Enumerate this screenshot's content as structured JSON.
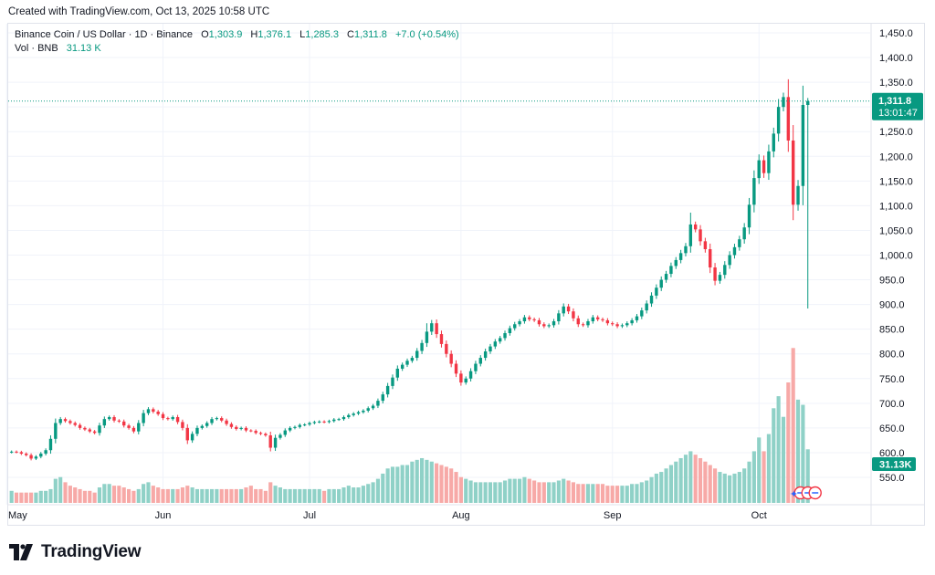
{
  "header": {
    "created_text": "Created with TradingView.com, Oct 13, 2025 10:58 UTC"
  },
  "legend": {
    "symbol": "Binance Coin / US Dollar · 1D · Binance",
    "open_label": "O",
    "open": "1,303.9",
    "high_label": "H",
    "high": "1,376.1",
    "low_label": "L",
    "low": "1,285.3",
    "close_label": "C",
    "close": "1,311.8",
    "change": "+7.0 (+0.54%)",
    "volume_label": "Vol · BNB",
    "volume": "31.13 K"
  },
  "price_marker": {
    "price": "1,311.8",
    "countdown": "13:01:47"
  },
  "volume_marker": {
    "value": "31.13K"
  },
  "footer": {
    "brand": "TradingView"
  },
  "colors": {
    "up": "#089981",
    "down": "#f23645",
    "up_vol": "#8fd1c7",
    "down_vol": "#f7a9a7"
  },
  "chart_data": {
    "type": "candlestick",
    "title": "Binance Coin / US Dollar · 1D · Binance",
    "ylim": [
      500,
      1475
    ],
    "y_ticks": [
      550,
      600,
      650,
      700,
      750,
      800,
      850,
      900,
      950,
      1000,
      1050,
      1100,
      1150,
      1200,
      1250,
      1300,
      1350,
      1400,
      1450
    ],
    "y_tick_labels": [
      "550.0",
      "600.0",
      "650.0",
      "700.0",
      "750.0",
      "800.0",
      "850.0",
      "900.0",
      "950.0",
      "1,000.0",
      "1,050.0",
      "1,100.0",
      "1,150.0",
      "1,200.0",
      "1,250.0",
      "1,300.0",
      "1,350.0",
      "1,400.0",
      "1,450.0"
    ],
    "x_labels": [
      {
        "label": "May",
        "index": -1
      },
      {
        "label": "Jun",
        "index": 31
      },
      {
        "label": "Jul",
        "index": 61
      },
      {
        "label": "Aug",
        "index": 92
      },
      {
        "label": "Sep",
        "index": 123
      },
      {
        "label": "Oct",
        "index": 153
      }
    ],
    "last_price": 1311.8,
    "volume_unit": "K BNB",
    "closes": [
      602,
      601,
      598,
      595,
      588,
      592,
      598,
      605,
      628,
      660,
      668,
      664,
      660,
      656,
      650,
      647,
      643,
      640,
      655,
      668,
      672,
      665,
      663,
      655,
      650,
      643,
      660,
      680,
      688,
      683,
      678,
      670,
      668,
      672,
      662,
      650,
      625,
      638,
      650,
      654,
      660,
      668,
      670,
      665,
      658,
      652,
      648,
      650,
      645,
      644,
      640,
      638,
      635,
      610,
      630,
      636,
      645,
      650,
      652,
      656,
      657,
      660,
      662,
      663,
      662,
      664,
      667,
      668,
      672,
      676,
      679,
      682,
      685,
      690,
      695,
      705,
      718,
      735,
      752,
      770,
      778,
      786,
      792,
      806,
      822,
      845,
      862,
      840,
      820,
      800,
      780,
      760,
      742,
      750,
      765,
      780,
      792,
      805,
      815,
      825,
      832,
      842,
      852,
      860,
      866,
      874,
      870,
      868,
      860,
      856,
      858,
      866,
      882,
      896,
      886,
      872,
      860,
      858,
      866,
      874,
      870,
      868,
      862,
      860,
      856,
      858,
      862,
      868,
      876,
      888,
      902,
      918,
      934,
      950,
      962,
      978,
      990,
      1004,
      1018,
      1062,
      1052,
      1028,
      1012,
      975,
      948,
      960,
      980,
      1000,
      1016,
      1032,
      1056,
      1102,
      1156,
      1192,
      1166,
      1210,
      1246,
      1300,
      1320,
      1232,
      1102,
      1140,
      1304,
      1311.8
    ],
    "volumes": [
      7,
      6,
      6,
      6,
      6,
      6,
      7,
      7,
      8,
      14,
      15,
      12,
      10,
      9,
      8,
      7,
      7,
      6,
      9,
      11,
      11,
      10,
      10,
      9,
      8,
      7,
      8,
      11,
      12,
      10,
      9,
      8,
      8,
      8,
      8,
      9,
      10,
      9,
      8,
      8,
      8,
      8,
      8,
      8,
      8,
      8,
      8,
      8,
      9,
      10,
      8,
      8,
      7,
      12,
      10,
      9,
      8,
      8,
      8,
      8,
      8,
      8,
      8,
      8,
      7,
      8,
      8,
      8,
      9,
      10,
      9,
      9,
      10,
      11,
      12,
      14,
      17,
      20,
      21,
      21,
      22,
      22,
      24,
      25,
      26,
      25,
      24,
      23,
      22,
      21,
      20,
      18,
      15,
      14,
      13,
      12,
      12,
      12,
      12,
      12,
      12,
      13,
      14,
      14,
      14,
      15,
      14,
      13,
      12,
      12,
      12,
      12,
      13,
      14,
      13,
      12,
      11,
      11,
      11,
      11,
      11,
      11,
      10,
      10,
      10,
      10,
      10,
      11,
      11,
      12,
      13,
      15,
      17,
      18,
      20,
      22,
      24,
      26,
      28,
      30,
      28,
      26,
      24,
      22,
      20,
      18,
      17,
      16,
      17,
      18,
      20,
      24,
      30,
      38,
      30,
      40,
      55,
      62,
      50,
      70,
      90,
      60,
      57,
      31.13
    ]
  }
}
